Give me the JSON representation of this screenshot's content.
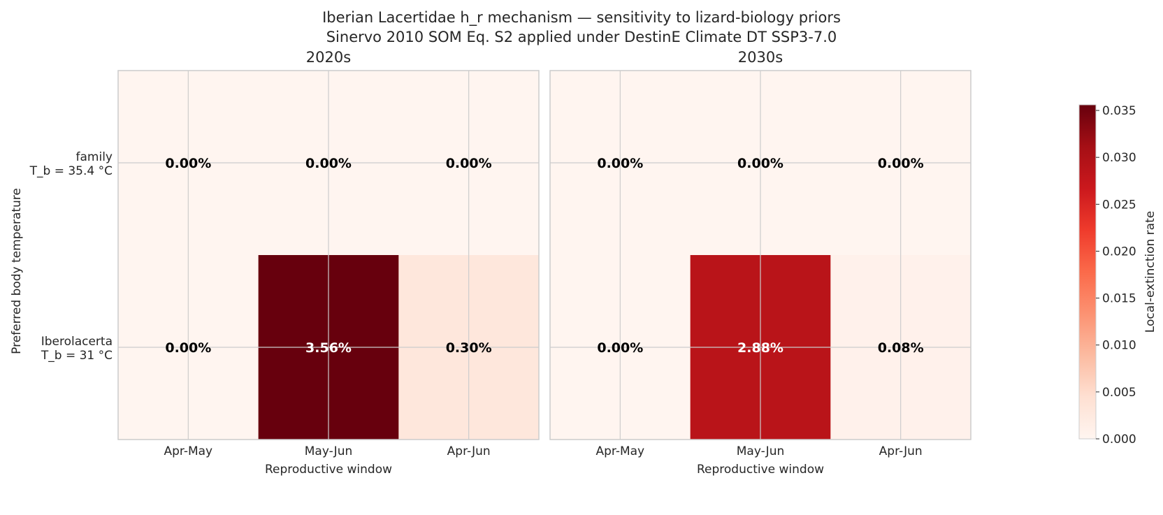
{
  "chart_data": {
    "type": "heatmap",
    "title": "Iberian Lacertidae h_r mechanism — sensitivity to lizard-biology priors",
    "subtitle": "Sinervo 2010 SOM Eq. S2 applied under DestinE Climate DT SSP3-7.0",
    "xlabel": "Reproductive window",
    "ylabel": "Preferred body temperature",
    "x_categories": [
      "Apr-May",
      "May-Jun",
      "Apr-Jun"
    ],
    "y_categories": [
      {
        "line1": "family",
        "line2": "T_b = 35.4 °C"
      },
      {
        "line1": "Iberolacerta",
        "line2": "T_b = 31 °C"
      }
    ],
    "panels": [
      {
        "title": "2020s",
        "values": [
          [
            0.0,
            0.0,
            0.0
          ],
          [
            0.0,
            0.0356,
            0.003
          ]
        ],
        "labels": [
          [
            "0.00%",
            "0.00%",
            "0.00%"
          ],
          [
            "0.00%",
            "3.56%",
            "0.30%"
          ]
        ]
      },
      {
        "title": "2030s",
        "values": [
          [
            0.0,
            0.0,
            0.0
          ],
          [
            0.0,
            0.0288,
            0.0008
          ]
        ],
        "labels": [
          [
            "0.00%",
            "0.00%",
            "0.00%"
          ],
          [
            "0.00%",
            "2.88%",
            "0.08%"
          ]
        ]
      }
    ],
    "colorbar": {
      "label": "Local-extinction rate",
      "colormap": "Reds",
      "range": [
        0.0,
        0.0356
      ],
      "ticks": [
        "0.000",
        "0.005",
        "0.010",
        "0.015",
        "0.020",
        "0.025",
        "0.030",
        "0.035"
      ],
      "tick_values": [
        0.0,
        0.005,
        0.01,
        0.015,
        0.02,
        0.025,
        0.03,
        0.035
      ]
    },
    "grid": true
  }
}
